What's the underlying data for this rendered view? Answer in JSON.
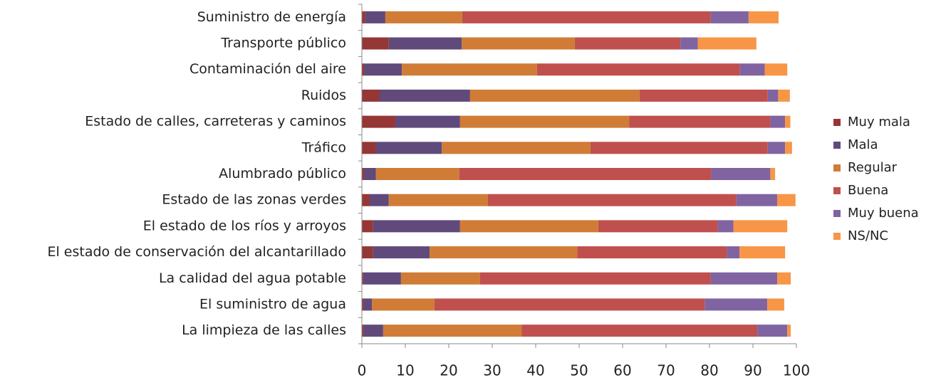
{
  "chart_data": {
    "type": "stacked_barh",
    "categories": [
      "Suministro de energía",
      "Transporte público",
      "Contaminación del aire",
      "Ruidos",
      "Estado de calles, carreteras y caminos",
      "Tráfico",
      "Alumbrado  público",
      "Estado de las zonas verdes",
      "El estado de los ríos y arroyos",
      "El estado de conservación del alcantarillado",
      "La calidad del agua potable",
      "El suministro de agua",
      "La limpieza de las calles"
    ],
    "series": [
      {
        "name": "Muy mala",
        "color": "#953735",
        "values": [
          0.8,
          6.2,
          0.5,
          4.1,
          7.7,
          3.2,
          0.5,
          1.8,
          2.6,
          2.6,
          0.3,
          0.4,
          0.4
        ]
      },
      {
        "name": "Mala",
        "color": "#604a7b",
        "values": [
          4.6,
          16.8,
          8.7,
          20.8,
          14.9,
          15.2,
          2.7,
          4.4,
          20,
          13,
          8.7,
          1.9,
          4.5
        ]
      },
      {
        "name": "Regular",
        "color": "#d07c36",
        "values": [
          17.7,
          26,
          31.1,
          39,
          38.9,
          34.2,
          19.2,
          22.8,
          31.8,
          34,
          18.2,
          14.4,
          31.9
        ]
      },
      {
        "name": "Buena",
        "color": "#c0504d",
        "values": [
          57.2,
          24.3,
          46.7,
          29.5,
          32.5,
          40.8,
          58,
          57.2,
          27.5,
          34.4,
          53.1,
          62.2,
          54.2
        ]
      },
      {
        "name": "Muy buena",
        "color": "#8064a2",
        "values": [
          8.7,
          4,
          5.7,
          2.4,
          3.4,
          4,
          13.6,
          9.4,
          3.6,
          2.9,
          15.3,
          14.4,
          6.9
        ]
      },
      {
        "name": "NS/NC",
        "color": "#f79646",
        "values": [
          6.9,
          13.5,
          5.2,
          2.7,
          1.2,
          1.6,
          1.1,
          4.2,
          12.4,
          10.5,
          3.1,
          3.9,
          0.8
        ]
      }
    ],
    "xlim": [
      0,
      100
    ],
    "xticks": [
      0,
      10,
      20,
      30,
      40,
      50,
      60,
      70,
      80,
      90,
      100
    ],
    "grid": false,
    "legend": "right"
  }
}
